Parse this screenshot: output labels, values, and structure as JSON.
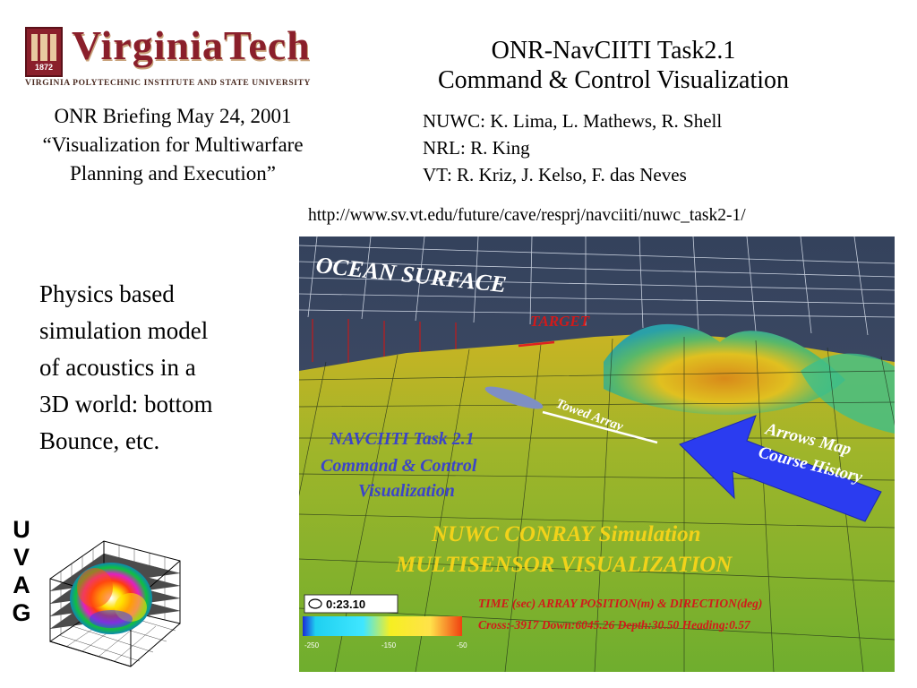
{
  "logo": {
    "wordmark": "VirginiaTech",
    "year": "1872",
    "subtitle": "VIRGINIA POLYTECHNIC INSTITUTE AND STATE UNIVERSITY",
    "color": "#8a1f2b"
  },
  "header": {
    "title_line1": "ONR-NavCIITI Task2.1",
    "title_line2": "Command & Control Visualization"
  },
  "briefing": {
    "line1": "ONR Briefing May 24, 2001",
    "line2": "“Visualization for Multiwarfare",
    "line3": "Planning and Execution”"
  },
  "team": {
    "nuwc": "NUWC: K. Lima, L. Mathews, R. Shell",
    "nrl": "NRL: R. King",
    "vt": "VT: R. Kriz, J. Kelso, F. das Neves"
  },
  "url": "http://www.sv.vt.edu/future/cave/resprj/navciiti/nuwc_task2-1/",
  "description": {
    "line1": "Physics based",
    "line2": "simulation model",
    "line3": "of acoustics in a",
    "line4": "3D world: bottom",
    "line5": "Bounce, etc."
  },
  "side_label": [
    "U",
    "V",
    "A",
    "G"
  ],
  "simulation": {
    "ocean_surface": "OCEAN SURFACE",
    "target": "TARGET",
    "towed_array": "Towed Array",
    "arrows_line1": "Arrows Map",
    "arrows_line2": "Course History",
    "task_line1": "NAVCIITI Task 2.1",
    "task_line2": "Command & Control",
    "task_line3": "Visualization",
    "conray_line1": "NUWC CONRAY Simulation",
    "conray_line2": "MULTISENSOR VISUALIZATION",
    "timer": "0:23.10",
    "time_label": "TIME (sec) ARRAY POSITION(m) & DIRECTION(deg)",
    "position_readout": "Cross:-3917 Down:6045.26 Depth:30.50 Heading:0.57",
    "scale_ticks": [
      "-250",
      "-150",
      "-50"
    ]
  },
  "colors": {
    "sim_title_blue": "#3b45c8",
    "sim_text_yellow": "#f2d21a",
    "sim_text_red": "#d11a1a",
    "arrow_blue": "#2b3cf0"
  }
}
